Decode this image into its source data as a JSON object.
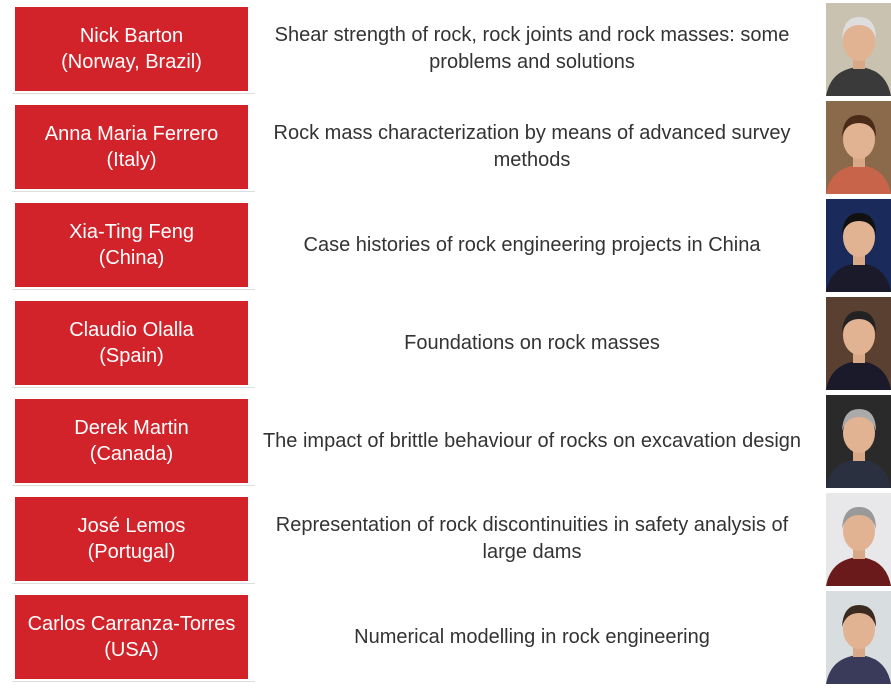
{
  "speakers": [
    {
      "name": "Nick Barton",
      "country": "(Norway, Brazil)",
      "title": "Shear strength of rock, rock joints and rock masses: some problems and solutions"
    },
    {
      "name": "Anna Maria Ferrero",
      "country": "(Italy)",
      "title": "Rock mass characterization by means of advanced survey methods"
    },
    {
      "name": "Xia-Ting Feng",
      "country": "(China)",
      "title": "Case histories of rock engineering projects in China"
    },
    {
      "name": "Claudio Olalla",
      "country": "(Spain)",
      "title": "Foundations on rock masses"
    },
    {
      "name": "Derek Martin",
      "country": "(Canada)",
      "title": "The impact of brittle behaviour of rocks on excavation design"
    },
    {
      "name": "José Lemos",
      "country": "(Portugal)",
      "title": "Representation of rock discontinuities in safety analysis of large dams"
    },
    {
      "name": "Carlos Carranza-Torres",
      "country": "(USA)",
      "title": "Numerical modelling in rock engineering"
    }
  ]
}
